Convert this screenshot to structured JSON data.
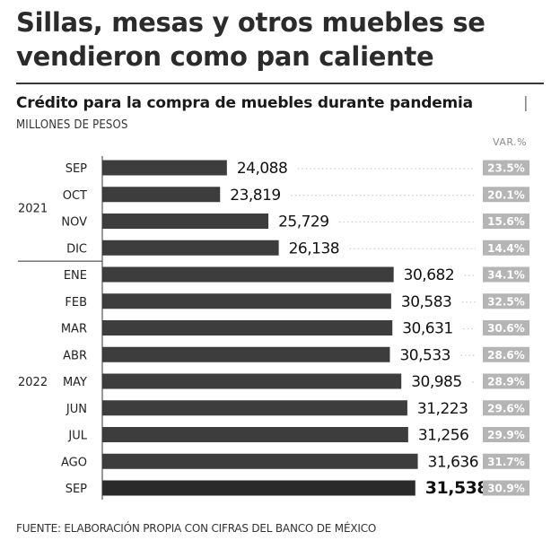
{
  "headline": "Sillas, mesas y otros muebles se vendieron como pan caliente",
  "chart_data": {
    "type": "bar",
    "orientation": "horizontal",
    "title": "Crédito para la compra de muebles durante pandemia",
    "title_separator": "|",
    "units": "MILLONES DE PESOS",
    "var_header": "VAR.%",
    "year_groups": [
      {
        "label": "2021",
        "start": 0,
        "end": 3
      },
      {
        "label": "2022",
        "start": 4,
        "end": 12
      }
    ],
    "categories": [
      "SEP",
      "OCT",
      "NOV",
      "DIC",
      "ENE",
      "FEB",
      "MAR",
      "ABR",
      "MAY",
      "JUN",
      "JUL",
      "AGO",
      "SEP"
    ],
    "values": [
      24088,
      23819,
      25729,
      26138,
      30682,
      30583,
      30631,
      30533,
      30985,
      31223,
      31256,
      31636,
      31538
    ],
    "value_labels": [
      "24,088",
      "23,819",
      "25,729",
      "26,138",
      "30,682",
      "30,583",
      "30,631",
      "30,533",
      "30,985",
      "31,223",
      "31,256",
      "31,636",
      "31,538"
    ],
    "var_pct": [
      "23.5%",
      "20.1%",
      "15.6%",
      "14.4%",
      "34.1%",
      "32.5%",
      "30.6%",
      "28.6%",
      "28.9%",
      "29.6%",
      "29.9%",
      "31.7%",
      "30.9%"
    ],
    "highlight_index": 12,
    "bar_color": "#3d3d3d",
    "badge_color": "#b5b5b5",
    "dot_color": "#cccccc"
  },
  "source": "FUENTE: ELABORACIÓN PROPIA CON CIFRAS DEL BANCO DE MÉXICO"
}
